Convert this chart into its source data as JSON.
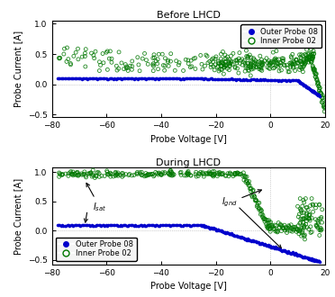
{
  "title_top": "Before LHCD",
  "title_bottom": "During LHCD",
  "xlabel": "Probe Voltage [V]",
  "ylabel": "Probe Current [A]",
  "xlim": [
    -80,
    20
  ],
  "xticks": [
    -80,
    -60,
    -40,
    -20,
    0,
    20
  ],
  "yticks": [
    -0.5,
    0,
    0.5,
    1
  ],
  "legend_labels": [
    "Outer Probe 08",
    "Inner Probe 02"
  ],
  "outer_color": "#0000cc",
  "inner_color": "#007700",
  "bg_color": "#f0f0f0"
}
